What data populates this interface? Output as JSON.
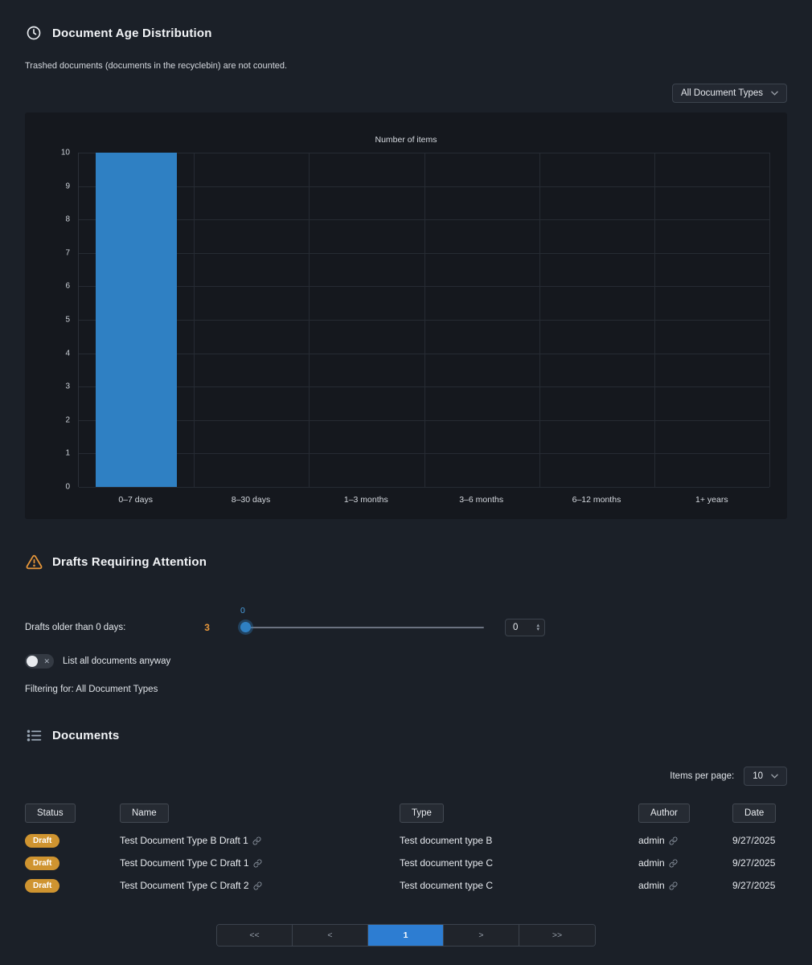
{
  "age_distribution": {
    "title": "Document Age Distribution",
    "note": "Trashed documents (documents in the recyclebin) are not counted.",
    "filter_value": "All Document Types"
  },
  "chart_data": {
    "type": "bar",
    "title": "Number of items",
    "categories": [
      "0–7 days",
      "8–30 days",
      "1–3 months",
      "3–6 months",
      "6–12 months",
      "1+ years"
    ],
    "values": [
      10,
      0,
      0,
      0,
      0,
      0
    ],
    "ylim": [
      0,
      10
    ],
    "grid": true,
    "bar_color": "#2f80c3"
  },
  "drafts": {
    "title": "Drafts Requiring Attention",
    "label": "Drafts older than 0 days:",
    "count": "3",
    "slider_value": "0",
    "input_value": "0",
    "toggle_label": "List all documents anyway",
    "filtering_label": "Filtering for: All Document Types"
  },
  "documents": {
    "title": "Documents",
    "items_per_page_label": "Items per page:",
    "items_per_page_value": "10",
    "columns": [
      "Status",
      "Name",
      "Type",
      "Author",
      "Date"
    ],
    "rows": [
      {
        "status": "Draft",
        "name": "Test Document Type B Draft 1",
        "type": "Test document type B",
        "author": "admin",
        "date": "9/27/2025"
      },
      {
        "status": "Draft",
        "name": "Test Document Type C Draft 1",
        "type": "Test document type C",
        "author": "admin",
        "date": "9/27/2025"
      },
      {
        "status": "Draft",
        "name": "Test Document Type C Draft 2",
        "type": "Test document type C",
        "author": "admin",
        "date": "9/27/2025"
      }
    ],
    "pagination": {
      "first": "<<",
      "prev": "<",
      "page": "1",
      "next": ">",
      "last": ">>"
    }
  }
}
